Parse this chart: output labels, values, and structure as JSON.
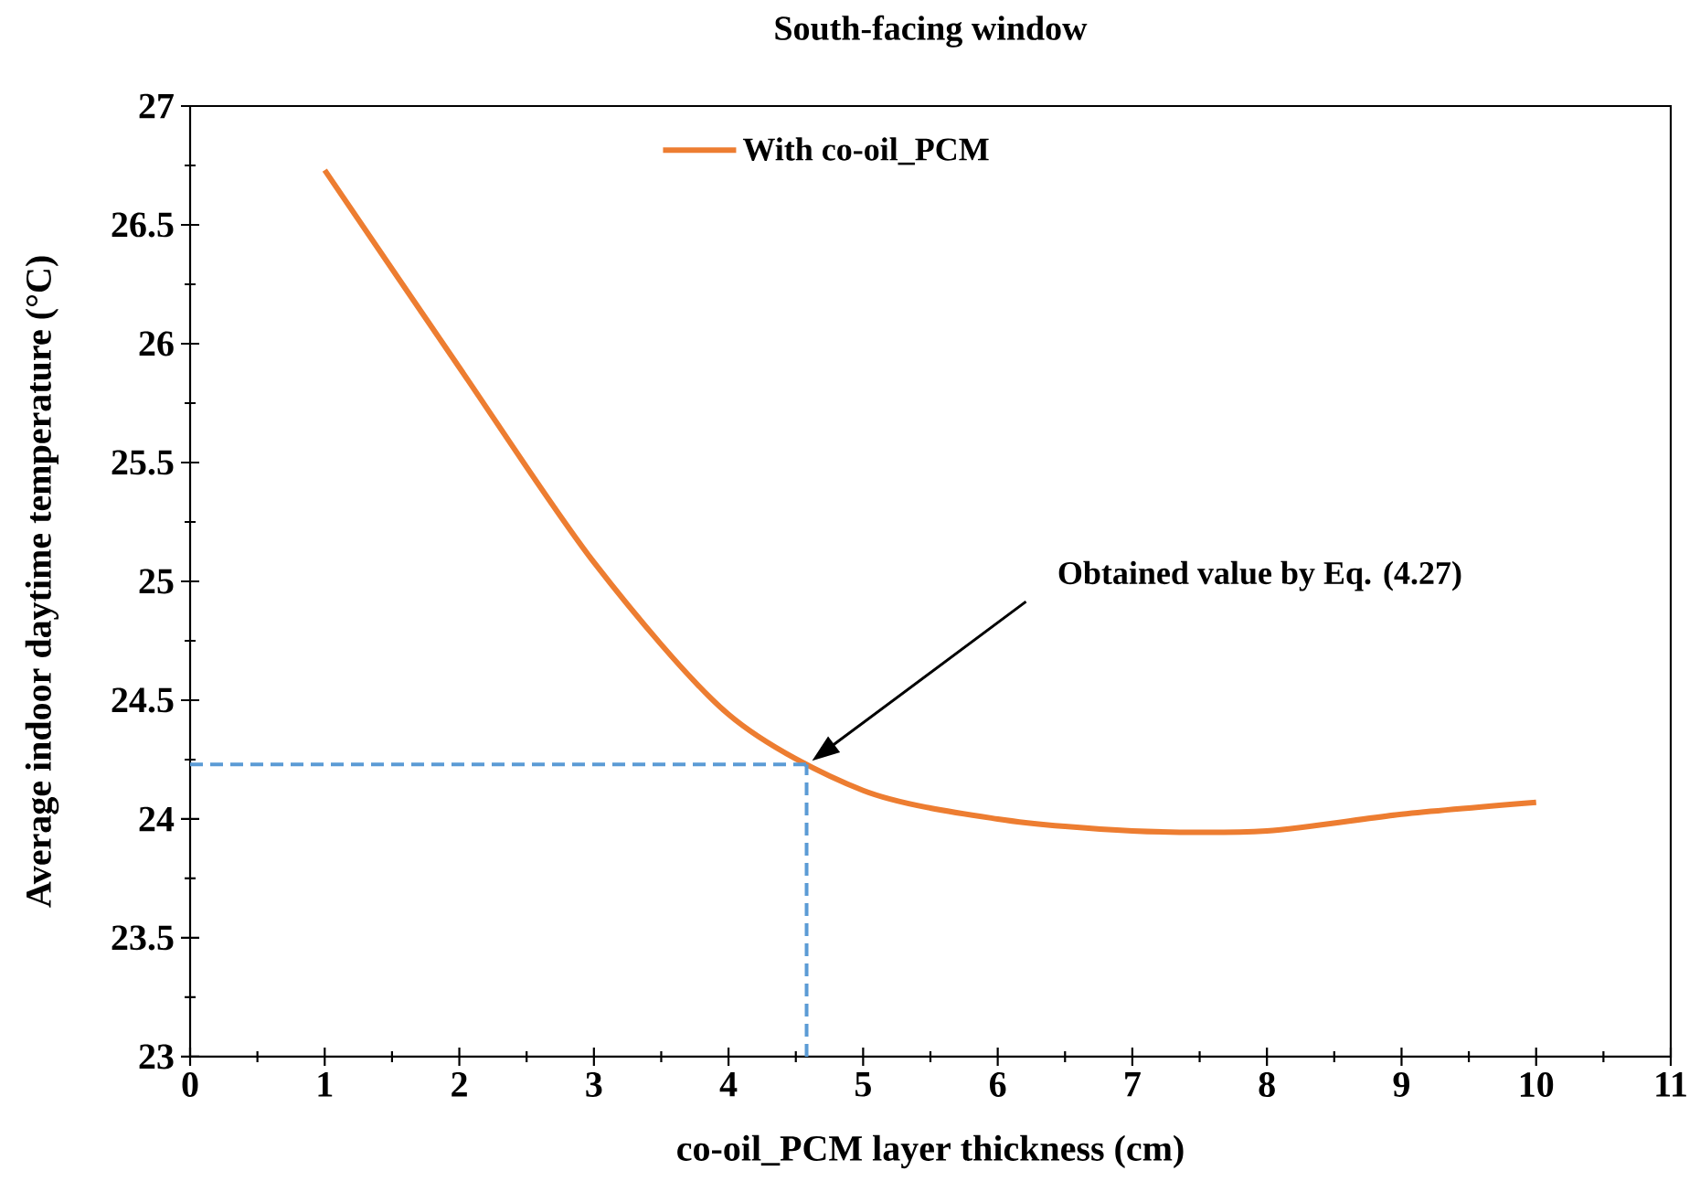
{
  "chart_data": {
    "type": "line",
    "title": "South-facing window",
    "xlabel": "co-oil_PCM layer thickness (cm)",
    "ylabel": "Average indoor daytime temperature (°C)",
    "x": [
      1,
      2,
      3,
      4,
      5,
      6,
      7,
      8,
      9,
      10
    ],
    "series": [
      {
        "name": "With co-oil_PCM",
        "color": "#ed7d31",
        "values": [
          26.73,
          25.9,
          25.08,
          24.44,
          24.12,
          24.0,
          23.95,
          23.95,
          24.02,
          24.07
        ]
      }
    ],
    "xlim": [
      0,
      11
    ],
    "xticks": [
      0,
      {
        "value": 0.5,
        "label": null
      },
      1,
      {
        "value": 1.5,
        "label": null
      },
      2,
      {
        "value": 2.5,
        "label": null
      },
      3,
      {
        "value": 3.5,
        "label": null
      },
      4,
      {
        "value": 4.5,
        "label": null
      },
      5,
      {
        "value": 5.5,
        "label": null
      },
      6,
      {
        "value": 6.5,
        "label": null
      },
      7,
      {
        "value": 7.5,
        "label": null
      },
      8,
      {
        "value": 8.5,
        "label": null
      },
      9,
      {
        "value": 9.5,
        "label": null
      },
      10,
      {
        "value": 10.5,
        "label": null
      },
      11
    ],
    "ylim": [
      23,
      27
    ],
    "yticks": [
      23,
      {
        "value": 23.25,
        "label": null
      },
      23.5,
      {
        "value": 23.75,
        "label": null
      },
      24,
      {
        "value": 24.25,
        "label": null
      },
      24.5,
      {
        "value": 24.75,
        "label": null
      },
      25,
      {
        "value": 25.25,
        "label": null
      },
      25.5,
      {
        "value": 25.75,
        "label": null
      },
      26,
      {
        "value": 26.25,
        "label": null
      },
      26.5,
      {
        "value": 26.75,
        "label": null
      },
      27
    ],
    "ref_lines": [
      {
        "axis": "x",
        "value": 4.58,
        "color": "#5b9bd5",
        "line_style": "dashed"
      },
      {
        "axis": "y",
        "value": 24.23,
        "color": "#5b9bd5",
        "line_style": "dashed"
      }
    ],
    "annotations": [
      "Obtained value by Eq. (4.27)"
    ],
    "legend": "top"
  }
}
